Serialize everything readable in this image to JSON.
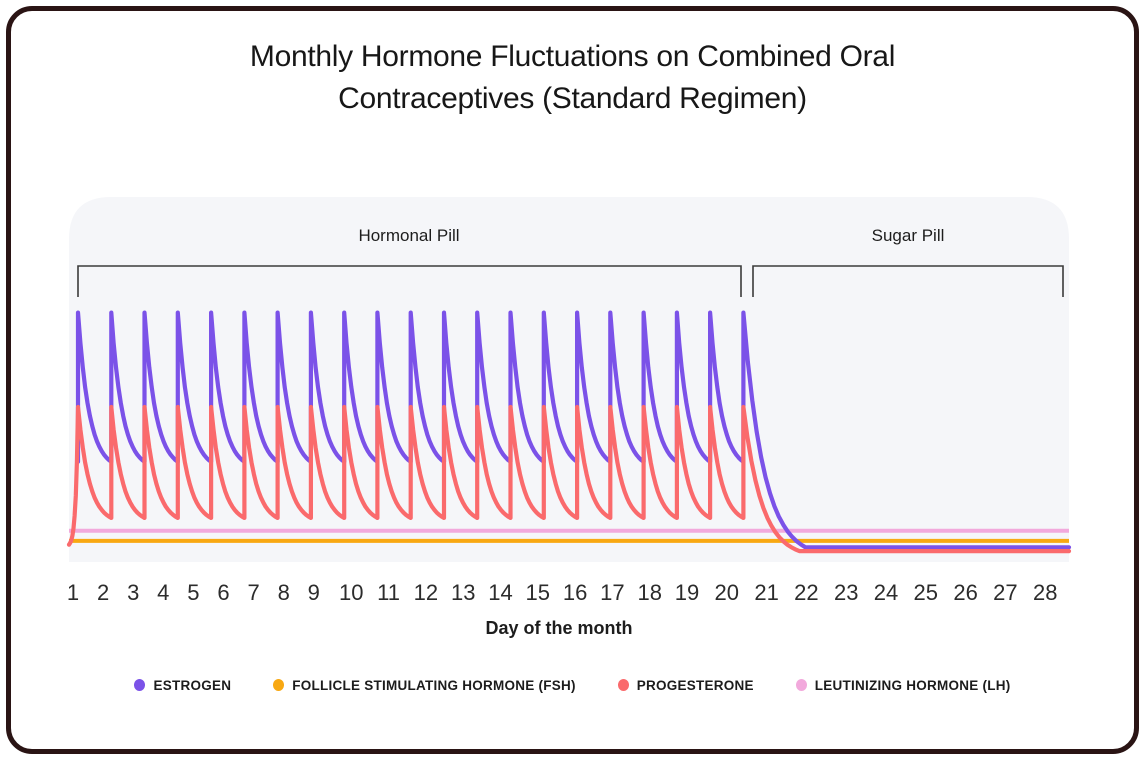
{
  "header": {
    "title_lines": [
      "Monthly Hormone Fluctuations on Combined Oral",
      "Contraceptives (Standard Regimen)"
    ]
  },
  "annotations": {
    "hormonal_pill": "Hormonal Pill",
    "sugar_pill": "Sugar Pill"
  },
  "x_axis": {
    "label": "Day of the month",
    "ticks": [
      "1",
      "2",
      "3",
      "4",
      "5",
      "6",
      "7",
      "8",
      "9",
      "10",
      "11",
      "12",
      "13",
      "14",
      "15",
      "16",
      "17",
      "18",
      "19",
      "20",
      "21",
      "22",
      "23",
      "24",
      "25",
      "26",
      "27",
      "28"
    ]
  },
  "colors": {
    "estrogen": "#7B52E8",
    "fsh": "#F8A812",
    "progesterone": "#FA6A6C",
    "lh": "#F2A9DC",
    "panel_background": "#F5F6F9",
    "bracket": "#3b3b3b",
    "card_border": "#2a1414"
  },
  "chart_data": {
    "type": "line",
    "title": "Monthly Hormone Fluctuations on Combined Oral Contraceptives (Standard Regimen)",
    "xlabel": "Day of the month",
    "ylabel": "",
    "x_range": [
      1,
      28
    ],
    "x_ticks": [
      1,
      2,
      3,
      4,
      5,
      6,
      7,
      8,
      9,
      10,
      11,
      12,
      13,
      14,
      15,
      16,
      17,
      18,
      19,
      20,
      21,
      22,
      23,
      24,
      25,
      26,
      27,
      28
    ],
    "y_axis_visible": false,
    "y_scale": "relative hormone level 0-1 (no numeric axis shown)",
    "grid": false,
    "legend_position": "bottom",
    "phases": [
      {
        "name": "Hormonal Pill",
        "day_start": 1,
        "day_end": 21
      },
      {
        "name": "Sugar Pill",
        "day_start": 21,
        "day_end": 28
      }
    ],
    "series": [
      {
        "id": "estrogen",
        "name": "ESTROGEN",
        "color": "#7B52E8",
        "shape": "spiky",
        "description": "Sharp spike each day 1-21: jumps to peak then exponential decay; after day 21 decays to flat baseline through day 28",
        "active_days": [
          1,
          21
        ],
        "peak_level": 0.97,
        "decay_trough_level": 0.385,
        "inactive_level": 0.05
      },
      {
        "id": "fsh",
        "name": "FOLLICLE STIMULATING HORMONE (FSH)",
        "color": "#F8A812",
        "shape": "flat",
        "description": "Constant suppressed level days 1-28",
        "level": 0.075
      },
      {
        "id": "progesterone",
        "name": "PROGESTERONE",
        "color": "#FA6A6C",
        "shape": "spiky",
        "description": "Gradual rise on day 1, then daily spike-and-decay days 1-21 at lower amplitude than estrogen; flat baseline days 22-28",
        "active_days": [
          1,
          21
        ],
        "peak_level": 0.6,
        "decay_trough_level": 0.165,
        "inactive_level": 0.035,
        "onset": "gradual"
      },
      {
        "id": "lh",
        "name": "LEUTINIZING HORMONE (LH)",
        "color": "#F2A9DC",
        "shape": "flat",
        "description": "Constant suppressed level days 1-28, slightly above FSH",
        "level": 0.115
      }
    ]
  }
}
